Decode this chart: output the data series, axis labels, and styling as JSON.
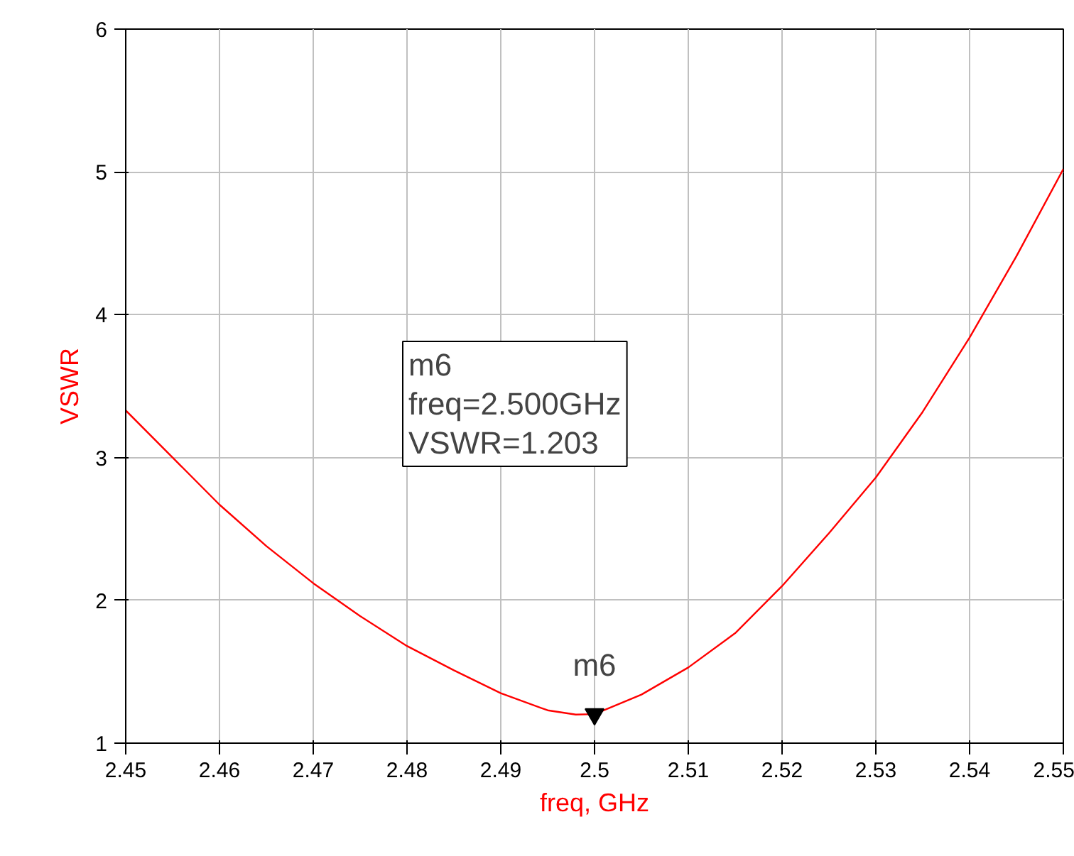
{
  "chart_data": {
    "type": "line",
    "xlabel": "freq, GHz",
    "ylabel": "VSWR",
    "x": [
      2.45,
      2.455,
      2.46,
      2.465,
      2.47,
      2.475,
      2.48,
      2.485,
      2.49,
      2.495,
      2.498,
      2.5,
      2.505,
      2.51,
      2.515,
      2.52,
      2.525,
      2.53,
      2.535,
      2.54,
      2.545,
      2.55
    ],
    "series": [
      {
        "color": "#ff0000",
        "values": [
          3.33,
          3.0,
          2.67,
          2.38,
          2.12,
          1.89,
          1.68,
          1.51,
          1.35,
          1.23,
          1.2,
          1.203,
          1.34,
          1.53,
          1.77,
          2.1,
          2.47,
          2.86,
          3.32,
          3.84,
          4.41,
          5.02
        ]
      }
    ],
    "xlim": [
      2.45,
      2.55
    ],
    "xticks": [
      2.45,
      2.46,
      2.47,
      2.48,
      2.49,
      2.5,
      2.51,
      2.52,
      2.53,
      2.54,
      2.55
    ],
    "ylim": [
      1,
      6
    ],
    "yticks": [
      1,
      2,
      3,
      4,
      5,
      6
    ],
    "grid": true,
    "marker": "none",
    "line_style": "solid",
    "annotations": [
      {
        "text": "m6",
        "x": 2.5,
        "y": 1.203
      },
      "m6\nfreq=2.500GHz\nVSWR=1.203"
    ]
  }
}
